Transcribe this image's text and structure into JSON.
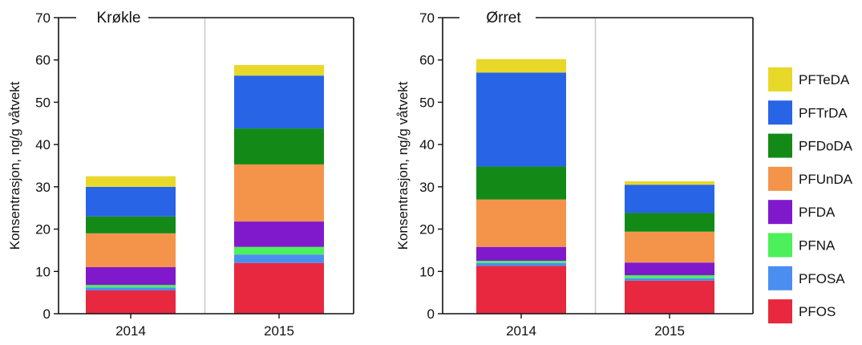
{
  "legend_order_top_to_bottom": [
    "PFTeDA",
    "PFTrDA",
    "PFDoDA",
    "PFUnDA",
    "PFDA",
    "PFNA",
    "PFOSA",
    "PFOS"
  ],
  "colors": {
    "PFOS": "#e8283f",
    "PFOSA": "#4a8ff0",
    "PFNA": "#4cf05a",
    "PFDA": "#8019cc",
    "PFUnDA": "#f4944a",
    "PFDoDA": "#138a17",
    "PFTrDA": "#2764e6",
    "PFTeDA": "#e8d82a"
  },
  "chart_data": [
    {
      "type": "bar",
      "stacked": true,
      "title": "Krøkle",
      "ylabel": "Konsentrasjon, ng/g våtvekt",
      "xlabel": "",
      "ylim": [
        0,
        70
      ],
      "yticks": [
        0,
        10,
        20,
        30,
        40,
        50,
        60,
        70
      ],
      "grid": false,
      "categories": [
        "2014",
        "2015"
      ],
      "series": [
        {
          "name": "PFOS",
          "values": [
            5.5,
            12.0
          ]
        },
        {
          "name": "PFOSA",
          "values": [
            0.7,
            2.0
          ]
        },
        {
          "name": "PFNA",
          "values": [
            0.6,
            1.8
          ]
        },
        {
          "name": "PFDA",
          "values": [
            4.2,
            6.0
          ]
        },
        {
          "name": "PFUnDA",
          "values": [
            8.0,
            13.5
          ]
        },
        {
          "name": "PFDoDA",
          "values": [
            4.0,
            8.5
          ]
        },
        {
          "name": "PFTrDA",
          "values": [
            7.0,
            12.5
          ]
        },
        {
          "name": "PFTeDA",
          "values": [
            2.5,
            2.5
          ]
        }
      ]
    },
    {
      "type": "bar",
      "stacked": true,
      "title": "Ørret",
      "ylabel": "Konsentrasjon, ng/g våtvekt",
      "xlabel": "",
      "ylim": [
        0,
        70
      ],
      "yticks": [
        0,
        10,
        20,
        30,
        40,
        50,
        60,
        70
      ],
      "grid": false,
      "legend": "right",
      "categories": [
        "2014",
        "2015"
      ],
      "series": [
        {
          "name": "PFOS",
          "values": [
            11.3,
            7.8
          ]
        },
        {
          "name": "PFOSA",
          "values": [
            0.7,
            0.6
          ]
        },
        {
          "name": "PFNA",
          "values": [
            0.5,
            0.7
          ]
        },
        {
          "name": "PFDA",
          "values": [
            3.3,
            3.0
          ]
        },
        {
          "name": "PFUnDA",
          "values": [
            11.2,
            7.3
          ]
        },
        {
          "name": "PFDoDA",
          "values": [
            7.8,
            4.4
          ]
        },
        {
          "name": "PFTrDA",
          "values": [
            22.2,
            6.7
          ]
        },
        {
          "name": "PFTeDA",
          "values": [
            3.2,
            0.8
          ]
        }
      ]
    }
  ]
}
